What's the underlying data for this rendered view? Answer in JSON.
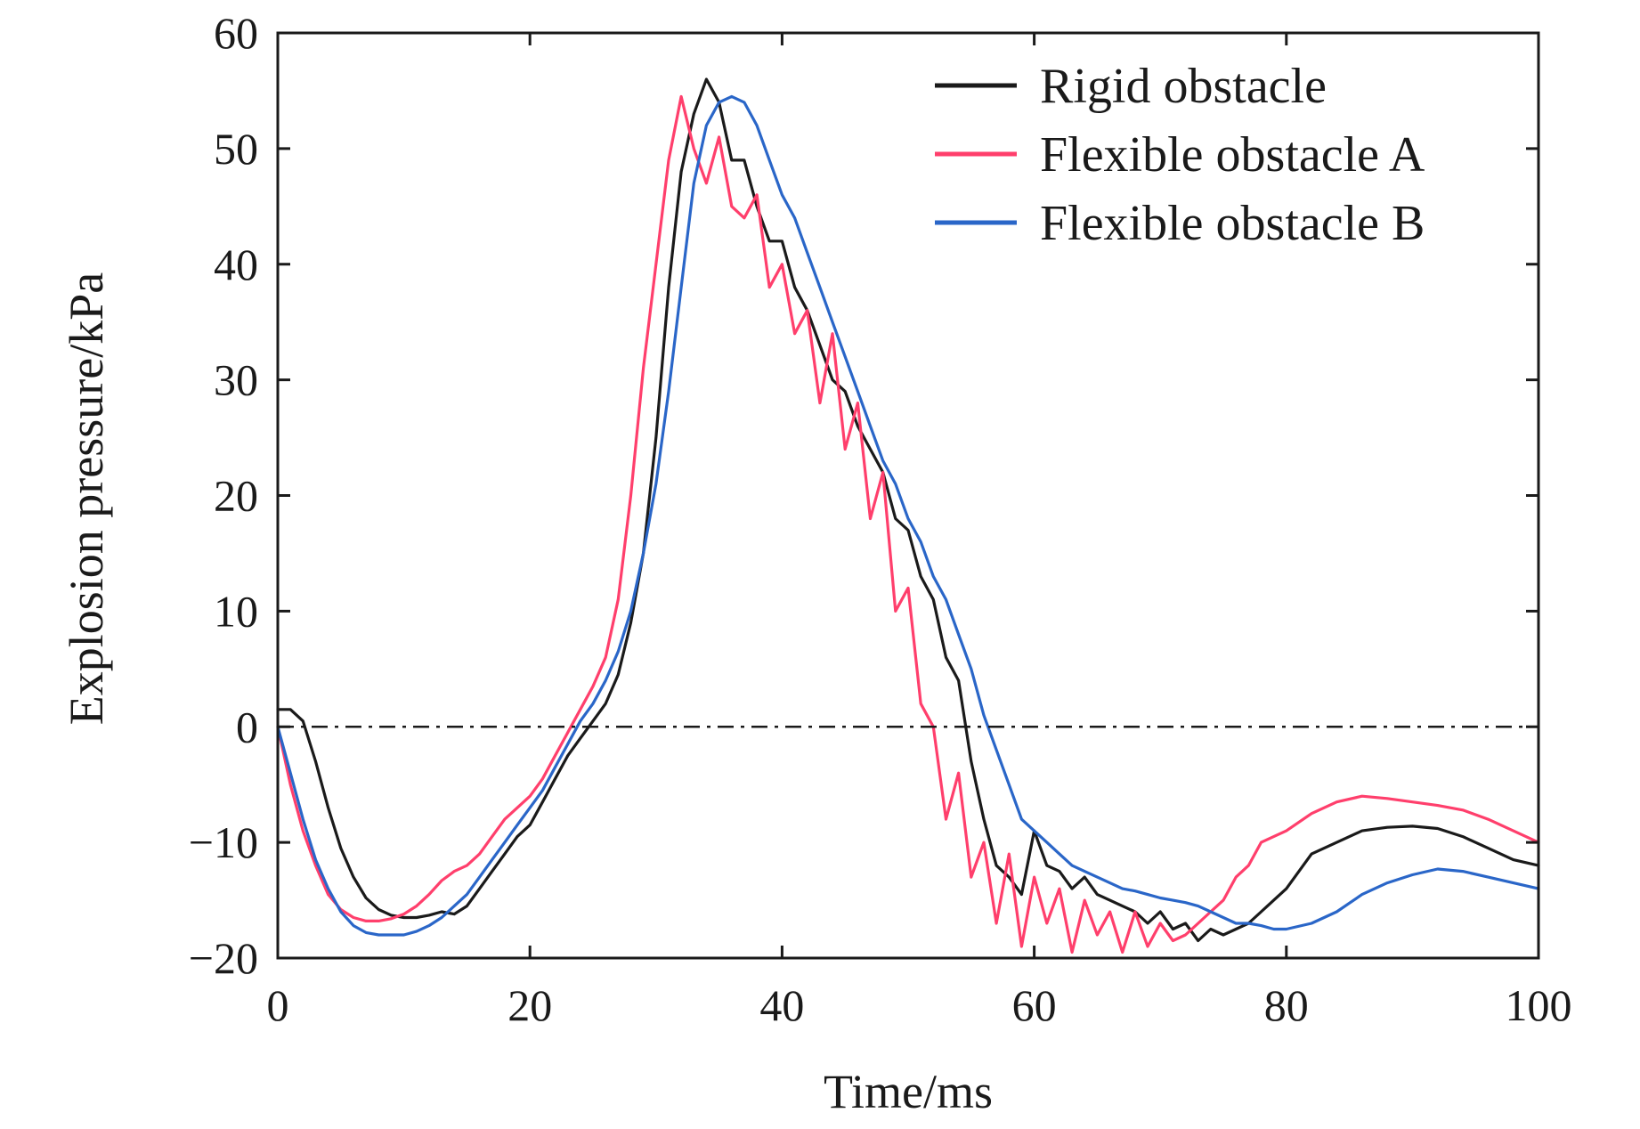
{
  "chart_data": {
    "type": "line",
    "title": "",
    "xlabel": "Time/ms",
    "ylabel": "Explosion pressure/kPa",
    "xlim": [
      0,
      100
    ],
    "ylim": [
      -20,
      60
    ],
    "xticks": [
      0,
      20,
      40,
      60,
      80,
      100
    ],
    "yticks": [
      -20,
      -10,
      0,
      10,
      20,
      30,
      40,
      50,
      60
    ],
    "xtick_labels": [
      "0",
      "20",
      "40",
      "60",
      "80",
      "100"
    ],
    "ytick_labels": [
      "−20",
      "−10",
      "0",
      "10",
      "20",
      "30",
      "40",
      "50",
      "60"
    ],
    "reference_line": {
      "y": 0,
      "style": "dash-dot"
    },
    "legend_position": "top-right",
    "series": [
      {
        "name": "Rigid obstacle",
        "color": "#1a1a1a",
        "x": [
          0,
          1,
          2,
          3,
          4,
          5,
          6,
          7,
          8,
          9,
          10,
          11,
          12,
          13,
          14,
          15,
          16,
          17,
          18,
          19,
          20,
          21,
          22,
          23,
          24,
          25,
          26,
          27,
          28,
          29,
          30,
          31,
          32,
          33,
          34,
          35,
          36,
          37,
          38,
          39,
          40,
          41,
          42,
          43,
          44,
          45,
          46,
          47,
          48,
          49,
          50,
          51,
          52,
          53,
          54,
          55,
          56,
          57,
          58,
          59,
          60,
          61,
          62,
          63,
          64,
          65,
          66,
          67,
          68,
          69,
          70,
          71,
          72,
          73,
          74,
          75,
          76,
          77,
          78,
          79,
          80,
          82,
          84,
          86,
          88,
          90,
          92,
          94,
          96,
          98,
          100
        ],
        "y": [
          1.5,
          1.5,
          0.5,
          -3,
          -7,
          -10.5,
          -13,
          -14.8,
          -15.8,
          -16.3,
          -16.5,
          -16.5,
          -16.3,
          -16,
          -16.2,
          -15.5,
          -14,
          -12.5,
          -11,
          -9.5,
          -8.5,
          -6.5,
          -4.5,
          -2.5,
          -1,
          0.5,
          2,
          4.5,
          9,
          15,
          25,
          38,
          48,
          53,
          56,
          54,
          49,
          49,
          45,
          42,
          42,
          38,
          36,
          33,
          30,
          29,
          26,
          24,
          22,
          18,
          17,
          13,
          11,
          6,
          4,
          -3,
          -8,
          -12,
          -13,
          -14.5,
          -9,
          -12,
          -12.5,
          -14,
          -13,
          -14.5,
          -15,
          -15.5,
          -16,
          -17,
          -16,
          -17.5,
          -17,
          -18.5,
          -17.5,
          -18,
          -17.5,
          -17,
          -16,
          -15,
          -14,
          -11,
          -10,
          -9,
          -8.7,
          -8.6,
          -8.8,
          -9.5,
          -10.5,
          -11.5,
          -12
        ]
      },
      {
        "name": "Flexible obstacle A",
        "color": "#ff3f6c",
        "x": [
          0,
          1,
          2,
          3,
          4,
          5,
          6,
          7,
          8,
          9,
          10,
          11,
          12,
          13,
          14,
          15,
          16,
          17,
          18,
          19,
          20,
          21,
          22,
          23,
          24,
          25,
          26,
          27,
          28,
          29,
          30,
          31,
          32,
          33,
          34,
          35,
          36,
          37,
          38,
          39,
          40,
          41,
          42,
          43,
          44,
          45,
          46,
          47,
          48,
          49,
          50,
          51,
          52,
          53,
          54,
          55,
          56,
          57,
          58,
          59,
          60,
          61,
          62,
          63,
          64,
          65,
          66,
          67,
          68,
          69,
          70,
          71,
          72,
          73,
          74,
          75,
          76,
          77,
          78,
          79,
          80,
          82,
          84,
          86,
          88,
          90,
          92,
          94,
          96,
          98,
          100
        ],
        "y": [
          0,
          -5,
          -9,
          -12,
          -14.5,
          -15.8,
          -16.5,
          -16.8,
          -16.8,
          -16.6,
          -16.2,
          -15.5,
          -14.5,
          -13.3,
          -12.5,
          -12,
          -11,
          -9.5,
          -8,
          -7,
          -6,
          -4.5,
          -2.5,
          -0.5,
          1.5,
          3.5,
          6,
          11,
          20,
          31,
          40,
          49,
          54.5,
          50,
          47,
          51,
          45,
          44,
          46,
          38,
          40,
          34,
          36,
          28,
          34,
          24,
          28,
          18,
          22,
          10,
          12,
          2,
          0,
          -8,
          -4,
          -13,
          -10,
          -17,
          -11,
          -19,
          -13,
          -17,
          -14,
          -19.5,
          -15,
          -18,
          -16,
          -19.5,
          -16,
          -19,
          -17,
          -18.5,
          -18,
          -17,
          -16,
          -15,
          -13,
          -12,
          -10,
          -9.5,
          -9,
          -7.5,
          -6.5,
          -6,
          -6.2,
          -6.5,
          -6.8,
          -7.2,
          -8,
          -9,
          -10
        ]
      },
      {
        "name": "Flexible obstacle B",
        "color": "#2a66c8",
        "x": [
          0,
          1,
          2,
          3,
          4,
          5,
          6,
          7,
          8,
          9,
          10,
          11,
          12,
          13,
          14,
          15,
          16,
          17,
          18,
          19,
          20,
          21,
          22,
          23,
          24,
          25,
          26,
          27,
          28,
          29,
          30,
          31,
          32,
          33,
          34,
          35,
          36,
          37,
          38,
          39,
          40,
          41,
          42,
          43,
          44,
          45,
          46,
          47,
          48,
          49,
          50,
          51,
          52,
          53,
          54,
          55,
          56,
          57,
          58,
          59,
          60,
          61,
          62,
          63,
          64,
          65,
          66,
          67,
          68,
          69,
          70,
          71,
          72,
          73,
          74,
          75,
          76,
          77,
          78,
          79,
          80,
          82,
          84,
          86,
          88,
          90,
          92,
          94,
          96,
          98,
          100
        ],
        "y": [
          0,
          -4,
          -8,
          -11.5,
          -14,
          -16,
          -17.2,
          -17.8,
          -18,
          -18,
          -18,
          -17.7,
          -17.2,
          -16.5,
          -15.5,
          -14.5,
          -13,
          -11.5,
          -10,
          -8.5,
          -7,
          -5.5,
          -3.5,
          -1.5,
          0.5,
          2,
          4,
          6.5,
          10,
          15,
          21,
          29,
          38,
          47,
          52,
          54,
          54.5,
          54,
          52,
          49,
          46,
          44,
          41,
          38,
          35,
          32,
          29,
          26,
          23,
          21,
          18,
          16,
          13,
          11,
          8,
          5,
          1,
          -2,
          -5,
          -8,
          -9,
          -10,
          -11,
          -12,
          -12.5,
          -13,
          -13.5,
          -14,
          -14.2,
          -14.5,
          -14.8,
          -15,
          -15.2,
          -15.5,
          -16,
          -16.5,
          -17,
          -17,
          -17.2,
          -17.5,
          -17.5,
          -17,
          -16,
          -14.5,
          -13.5,
          -12.8,
          -12.3,
          -12.5,
          -13,
          -13.5,
          -14
        ]
      }
    ]
  }
}
